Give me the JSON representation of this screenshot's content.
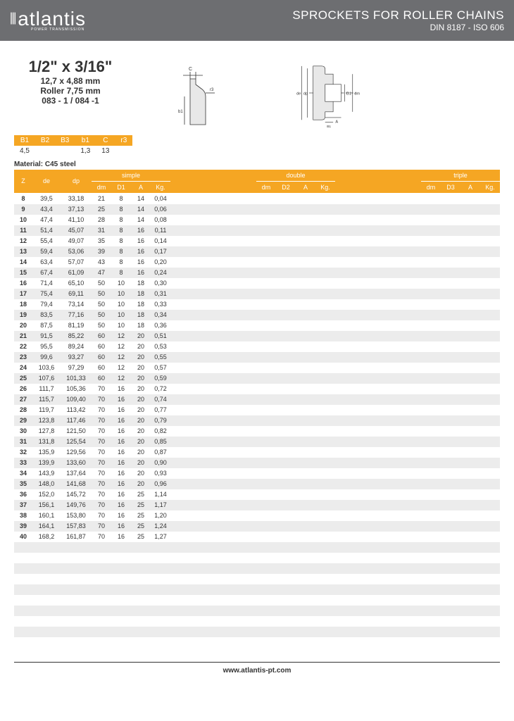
{
  "header": {
    "logo_name": "atlantis",
    "logo_sub": "POWER TRANSMISSION",
    "title": "SPROCKETS FOR ROLLER CHAINS",
    "subtitle": "DIN 8187 - ISO 606"
  },
  "spec": {
    "main": "1/2\" x 3/16\"",
    "mm": "12,7 x 4,88 mm",
    "roller": "Roller 7,75 mm",
    "code": "083 - 1 / 084 -1"
  },
  "small_table": {
    "headers": [
      "B1",
      "B2",
      "B3",
      "b1",
      "C",
      "r3"
    ],
    "row": [
      "4,5",
      "",
      "",
      "1,3",
      "13",
      ""
    ]
  },
  "material": "Material: C45 steel",
  "groups": {
    "base": [
      "Z",
      "de",
      "dp"
    ],
    "simple": [
      "dm",
      "D1",
      "A",
      "Kg."
    ],
    "double": [
      "dm",
      "D2",
      "A",
      "Kg."
    ],
    "triple": [
      "dm",
      "D3",
      "A",
      "Kg."
    ]
  },
  "rows": [
    {
      "z": "8",
      "de": "39,5",
      "dp": "33,18",
      "s": [
        "21",
        "8",
        "14",
        "0,04"
      ]
    },
    {
      "z": "9",
      "de": "43,4",
      "dp": "37,13",
      "s": [
        "25",
        "8",
        "14",
        "0,06"
      ]
    },
    {
      "z": "10",
      "de": "47,4",
      "dp": "41,10",
      "s": [
        "28",
        "8",
        "14",
        "0,08"
      ]
    },
    {
      "z": "11",
      "de": "51,4",
      "dp": "45,07",
      "s": [
        "31",
        "8",
        "16",
        "0,11"
      ]
    },
    {
      "z": "12",
      "de": "55,4",
      "dp": "49,07",
      "s": [
        "35",
        "8",
        "16",
        "0,14"
      ]
    },
    {
      "z": "13",
      "de": "59,4",
      "dp": "53,06",
      "s": [
        "39",
        "8",
        "16",
        "0,17"
      ]
    },
    {
      "z": "14",
      "de": "63,4",
      "dp": "57,07",
      "s": [
        "43",
        "8",
        "16",
        "0,20"
      ]
    },
    {
      "z": "15",
      "de": "67,4",
      "dp": "61,09",
      "s": [
        "47",
        "8",
        "16",
        "0,24"
      ]
    },
    {
      "z": "16",
      "de": "71,4",
      "dp": "65,10",
      "s": [
        "50",
        "10",
        "18",
        "0,30"
      ]
    },
    {
      "z": "17",
      "de": "75,4",
      "dp": "69,11",
      "s": [
        "50",
        "10",
        "18",
        "0,31"
      ]
    },
    {
      "z": "18",
      "de": "79,4",
      "dp": "73,14",
      "s": [
        "50",
        "10",
        "18",
        "0,33"
      ]
    },
    {
      "z": "19",
      "de": "83,5",
      "dp": "77,16",
      "s": [
        "50",
        "10",
        "18",
        "0,34"
      ]
    },
    {
      "z": "20",
      "de": "87,5",
      "dp": "81,19",
      "s": [
        "50",
        "10",
        "18",
        "0,36"
      ]
    },
    {
      "z": "21",
      "de": "91,5",
      "dp": "85,22",
      "s": [
        "60",
        "12",
        "20",
        "0,51"
      ]
    },
    {
      "z": "22",
      "de": "95,5",
      "dp": "89,24",
      "s": [
        "60",
        "12",
        "20",
        "0,53"
      ]
    },
    {
      "z": "23",
      "de": "99,6",
      "dp": "93,27",
      "s": [
        "60",
        "12",
        "20",
        "0,55"
      ]
    },
    {
      "z": "24",
      "de": "103,6",
      "dp": "97,29",
      "s": [
        "60",
        "12",
        "20",
        "0,57"
      ]
    },
    {
      "z": "25",
      "de": "107,6",
      "dp": "101,33",
      "s": [
        "60",
        "12",
        "20",
        "0,59"
      ]
    },
    {
      "z": "26",
      "de": "111,7",
      "dp": "105,36",
      "s": [
        "70",
        "16",
        "20",
        "0,72"
      ]
    },
    {
      "z": "27",
      "de": "115,7",
      "dp": "109,40",
      "s": [
        "70",
        "16",
        "20",
        "0,74"
      ]
    },
    {
      "z": "28",
      "de": "119,7",
      "dp": "113,42",
      "s": [
        "70",
        "16",
        "20",
        "0,77"
      ]
    },
    {
      "z": "29",
      "de": "123,8",
      "dp": "117,46",
      "s": [
        "70",
        "16",
        "20",
        "0,79"
      ]
    },
    {
      "z": "30",
      "de": "127,8",
      "dp": "121,50",
      "s": [
        "70",
        "16",
        "20",
        "0,82"
      ]
    },
    {
      "z": "31",
      "de": "131,8",
      "dp": "125,54",
      "s": [
        "70",
        "16",
        "20",
        "0,85"
      ]
    },
    {
      "z": "32",
      "de": "135,9",
      "dp": "129,56",
      "s": [
        "70",
        "16",
        "20",
        "0,87"
      ]
    },
    {
      "z": "33",
      "de": "139,9",
      "dp": "133,60",
      "s": [
        "70",
        "16",
        "20",
        "0,90"
      ]
    },
    {
      "z": "34",
      "de": "143,9",
      "dp": "137,64",
      "s": [
        "70",
        "16",
        "20",
        "0,93"
      ]
    },
    {
      "z": "35",
      "de": "148,0",
      "dp": "141,68",
      "s": [
        "70",
        "16",
        "20",
        "0,96"
      ]
    },
    {
      "z": "36",
      "de": "152,0",
      "dp": "145,72",
      "s": [
        "70",
        "16",
        "25",
        "1,14"
      ]
    },
    {
      "z": "37",
      "de": "156,1",
      "dp": "149,76",
      "s": [
        "70",
        "16",
        "25",
        "1,17"
      ]
    },
    {
      "z": "38",
      "de": "160,1",
      "dp": "153,80",
      "s": [
        "70",
        "16",
        "25",
        "1,20"
      ]
    },
    {
      "z": "39",
      "de": "164,1",
      "dp": "157,83",
      "s": [
        "70",
        "16",
        "25",
        "1,24"
      ]
    },
    {
      "z": "40",
      "de": "168,2",
      "dp": "161,87",
      "s": [
        "70",
        "16",
        "25",
        "1,27"
      ]
    }
  ],
  "empty_rows": 10,
  "footer": "www.atlantis-pt.com",
  "colors": {
    "header_bg": "#6d6e71",
    "accent": "#f5a623",
    "row_alt": "#ececec"
  }
}
